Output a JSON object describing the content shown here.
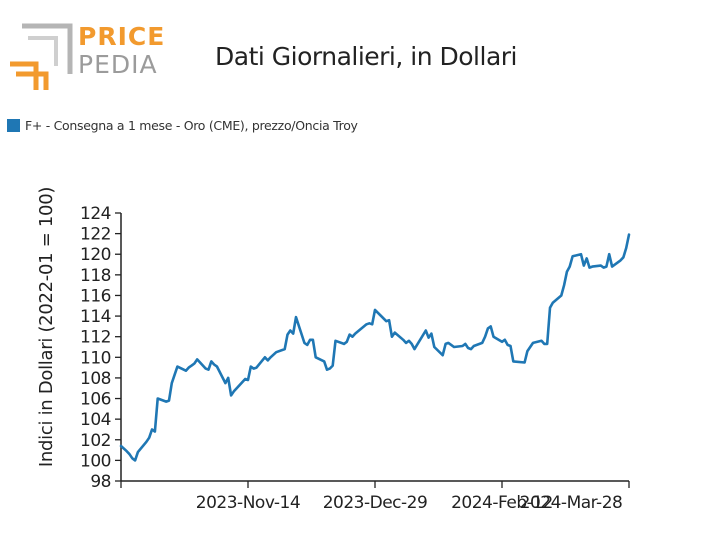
{
  "header": {
    "logo_top": "PRICE",
    "logo_bottom": "PEDIA",
    "title": "Dati Giornalieri, in Dollari"
  },
  "colors": {
    "series": "#1f77b4",
    "logo_orange": "#f29a2e",
    "logo_gray": "#9b9b9b"
  },
  "chart_data": {
    "type": "line",
    "ylabel": "Indici in Dollari (2022-01 = 100)",
    "xlabel": "",
    "ylim": [
      98,
      124
    ],
    "yticks": [
      98,
      100,
      102,
      104,
      106,
      108,
      110,
      112,
      114,
      116,
      118,
      120,
      122,
      124
    ],
    "x_range": [
      "2023-09-30",
      "2024-03-28"
    ],
    "xticks": [
      "2023-11-14",
      "2023-12-29",
      "2024-02-12",
      "2024-03-28"
    ],
    "xtick_labels": [
      "2023-Nov-14",
      "2023-Dec-29",
      "2024-Feb-12",
      "2024-Mar-28"
    ],
    "legend": "top-left",
    "grid": false,
    "series": [
      {
        "name": "F+ - Consegna a 1 mese - Oro (CME), prezzo/Oncia Troy",
        "x": [
          "2023-09-30",
          "2023-10-02",
          "2023-10-03",
          "2023-10-04",
          "2023-10-05",
          "2023-10-06",
          "2023-10-09",
          "2023-10-10",
          "2023-10-11",
          "2023-10-12",
          "2023-10-13",
          "2023-10-16",
          "2023-10-17",
          "2023-10-18",
          "2023-10-19",
          "2023-10-20",
          "2023-10-23",
          "2023-10-24",
          "2023-10-25",
          "2023-10-26",
          "2023-10-27",
          "2023-10-30",
          "2023-10-31",
          "2023-11-01",
          "2023-11-02",
          "2023-11-03",
          "2023-11-06",
          "2023-11-07",
          "2023-11-08",
          "2023-11-09",
          "2023-11-10",
          "2023-11-13",
          "2023-11-14",
          "2023-11-15",
          "2023-11-16",
          "2023-11-17",
          "2023-11-20",
          "2023-11-21",
          "2023-11-22",
          "2023-11-24",
          "2023-11-27",
          "2023-11-28",
          "2023-11-29",
          "2023-11-30",
          "2023-12-01",
          "2023-12-04",
          "2023-12-05",
          "2023-12-06",
          "2023-12-07",
          "2023-12-08",
          "2023-12-11",
          "2023-12-12",
          "2023-12-13",
          "2023-12-14",
          "2023-12-15",
          "2023-12-18",
          "2023-12-19",
          "2023-12-20",
          "2023-12-21",
          "2023-12-22",
          "2023-12-26",
          "2023-12-27",
          "2023-12-28",
          "2023-12-29",
          "2024-01-02",
          "2024-01-03",
          "2024-01-04",
          "2024-01-05",
          "2024-01-08",
          "2024-01-09",
          "2024-01-10",
          "2024-01-11",
          "2024-01-12",
          "2024-01-16",
          "2024-01-17",
          "2024-01-18",
          "2024-01-19",
          "2024-01-22",
          "2024-01-23",
          "2024-01-24",
          "2024-01-25",
          "2024-01-26",
          "2024-01-29",
          "2024-01-30",
          "2024-01-31",
          "2024-02-01",
          "2024-02-02",
          "2024-02-05",
          "2024-02-06",
          "2024-02-07",
          "2024-02-08",
          "2024-02-09",
          "2024-02-12",
          "2024-02-13",
          "2024-02-14",
          "2024-02-15",
          "2024-02-16",
          "2024-02-20",
          "2024-02-21",
          "2024-02-22",
          "2024-02-23",
          "2024-02-26",
          "2024-02-27",
          "2024-02-28",
          "2024-02-29",
          "2024-03-01",
          "2024-03-04",
          "2024-03-05",
          "2024-03-06",
          "2024-03-07",
          "2024-03-08",
          "2024-03-11",
          "2024-03-12",
          "2024-03-13",
          "2024-03-14",
          "2024-03-15",
          "2024-03-18",
          "2024-03-19",
          "2024-03-20",
          "2024-03-21",
          "2024-03-22",
          "2024-03-25",
          "2024-03-26",
          "2024-03-27",
          "2024-03-28"
        ],
        "values": [
          101.4,
          100.9,
          100.6,
          100.2,
          100.0,
          100.8,
          101.8,
          102.2,
          103.0,
          102.8,
          106.0,
          105.7,
          105.8,
          107.5,
          108.3,
          109.1,
          108.7,
          109.0,
          109.2,
          109.4,
          109.8,
          108.9,
          108.8,
          109.6,
          109.3,
          109.1,
          107.5,
          108.0,
          106.3,
          106.7,
          107.0,
          107.9,
          107.8,
          109.1,
          108.9,
          109.0,
          110.0,
          109.7,
          110.0,
          110.5,
          110.8,
          112.2,
          112.6,
          112.3,
          113.9,
          111.4,
          111.2,
          111.7,
          111.7,
          110.0,
          109.6,
          108.8,
          108.9,
          109.2,
          111.6,
          111.3,
          111.5,
          112.2,
          112.0,
          112.3,
          113.2,
          113.3,
          113.2,
          114.6,
          113.5,
          113.6,
          112.0,
          112.4,
          111.7,
          111.4,
          111.6,
          111.3,
          110.8,
          112.6,
          111.9,
          112.3,
          111.0,
          110.2,
          111.3,
          111.4,
          111.2,
          111.0,
          111.1,
          111.3,
          110.9,
          110.8,
          111.1,
          111.4,
          112.0,
          112.8,
          113.0,
          112.0,
          111.5,
          111.7,
          111.2,
          111.1,
          109.6,
          109.5,
          110.6,
          111.0,
          111.4,
          111.6,
          111.3,
          111.3,
          114.8,
          115.3,
          116.0,
          117.0,
          118.3,
          118.8,
          119.8,
          120.0,
          118.9,
          119.6,
          118.7,
          118.8,
          118.9,
          118.7,
          118.8,
          120.0,
          118.8,
          119.4,
          119.7,
          120.6,
          121.9
        ]
      }
    ]
  }
}
